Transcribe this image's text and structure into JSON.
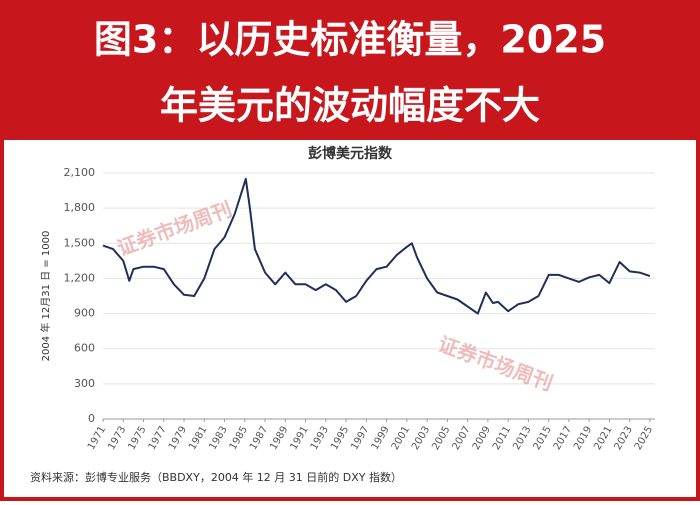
{
  "header": {
    "lines": [
      "图3：以历史标准衡量，2025",
      "年美元的波动幅度不大"
    ]
  },
  "chart_data": {
    "type": "line",
    "title": "彭博美元指数",
    "ylabel": "2004 年 12月31 日 = 1000",
    "x": [
      1971,
      1972,
      1973,
      1973.6,
      1974,
      1975,
      1976,
      1977,
      1978,
      1979,
      1980,
      1981,
      1982,
      1983,
      1984,
      1985.1,
      1985.5,
      1986,
      1987,
      1988,
      1989,
      1990,
      1991,
      1992,
      1993,
      1994,
      1995,
      1996,
      1997,
      1998,
      1999,
      2000,
      2001,
      2001.5,
      2002,
      2003,
      2004,
      2005,
      2006,
      2007,
      2008,
      2008.8,
      2009.5,
      2010,
      2011,
      2012,
      2013,
      2014,
      2015,
      2016,
      2017,
      2018,
      2019,
      2020,
      2021,
      2022,
      2023,
      2024,
      2025
    ],
    "series": [
      {
        "name": "彭博美元指数",
        "color": "#1f2f57",
        "values": [
          1480,
          1450,
          1350,
          1180,
          1280,
          1300,
          1300,
          1280,
          1150,
          1060,
          1050,
          1200,
          1450,
          1550,
          1750,
          2050,
          1800,
          1450,
          1250,
          1150,
          1250,
          1150,
          1150,
          1100,
          1150,
          1100,
          1000,
          1050,
          1180,
          1280,
          1300,
          1400,
          1470,
          1500,
          1380,
          1200,
          1080,
          1050,
          1020,
          960,
          900,
          1080,
          990,
          1000,
          920,
          980,
          1000,
          1050,
          1230,
          1230,
          1200,
          1170,
          1210,
          1230,
          1160,
          1340,
          1260,
          1250,
          1220
        ]
      }
    ],
    "xlim": [
      1971,
      2025.5
    ],
    "xticks": [
      1971,
      1973,
      1975,
      1977,
      1979,
      1981,
      1983,
      1985,
      1987,
      1989,
      1991,
      1993,
      1995,
      1997,
      1999,
      2001,
      2003,
      2005,
      2007,
      2009,
      2011,
      2013,
      2015,
      2017,
      2019,
      2021,
      2023,
      2025
    ],
    "ylim": [
      0,
      2100
    ],
    "yticks": [
      0,
      300,
      600,
      900,
      {
        "value": 1200,
        "label": "1,200"
      },
      {
        "value": 1500,
        "label": "1,500"
      },
      {
        "value": 1800,
        "label": "1,800"
      },
      {
        "value": 2100,
        "label": "2,100"
      }
    ],
    "grid": true
  },
  "watermarks": [
    "证券市场周刊",
    "证券市场周刊"
  ],
  "source": "资料来源：彭博专业服务（BBDXY，2004 年 12 月 31 日前的 DXY 指数）"
}
